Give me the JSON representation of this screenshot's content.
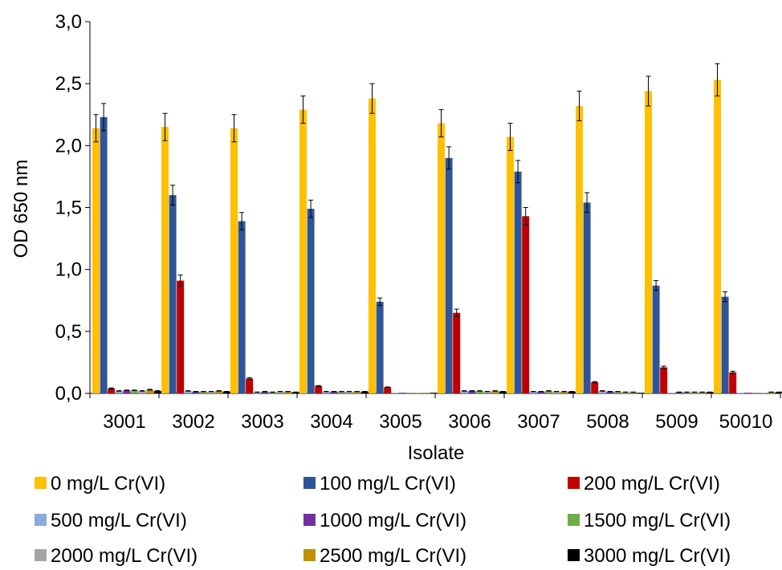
{
  "chart_data": {
    "type": "bar",
    "title": "",
    "xlabel": "Isolate",
    "ylabel": "OD 650 nm",
    "ylim": [
      0,
      3.0
    ],
    "yticks": [
      "0,0",
      "0,5",
      "1,0",
      "1,5",
      "2,0",
      "2,5",
      "3,0"
    ],
    "grid": false,
    "legend_position": "bottom",
    "categories": [
      "3001",
      "3002",
      "3003",
      "3004",
      "3005",
      "3006",
      "3007",
      "5008",
      "5009",
      "50010"
    ],
    "series": [
      {
        "name": "0 mg/L Cr(VI)",
        "color": "#FFC000",
        "values": [
          2.14,
          2.15,
          2.14,
          2.29,
          2.38,
          2.18,
          2.07,
          2.32,
          2.44,
          2.53
        ],
        "errors": [
          0.11,
          0.11,
          0.11,
          0.11,
          0.12,
          0.11,
          0.11,
          0.12,
          0.12,
          0.13
        ]
      },
      {
        "name": "100 mg/L Cr(VI)",
        "color": "#2F5597",
        "values": [
          2.23,
          1.6,
          1.39,
          1.49,
          0.74,
          1.9,
          1.79,
          1.54,
          0.87,
          0.78
        ],
        "errors": [
          0.11,
          0.08,
          0.07,
          0.07,
          0.03,
          0.09,
          0.09,
          0.08,
          0.04,
          0.04
        ]
      },
      {
        "name": "200 mg/L Cr(VI)",
        "color": "#C00000",
        "values": [
          0.04,
          0.91,
          0.12,
          0.06,
          0.05,
          0.65,
          1.43,
          0.09,
          0.21,
          0.17
        ],
        "errors": [
          0.004,
          0.045,
          0.006,
          0.003,
          0.002,
          0.03,
          0.07,
          0.005,
          0.01,
          0.009
        ]
      },
      {
        "name": "500 mg/L Cr(VI)",
        "color": "#8EA9DB",
        "values": [
          0.02,
          0.02,
          0.01,
          0.015,
          0.005,
          0.02,
          0.015,
          0.02,
          0.005,
          0.005
        ],
        "errors": [
          0.002,
          0.002,
          0.001,
          0.001,
          0.0,
          0.002,
          0.001,
          0.002,
          0.0,
          0.0
        ]
      },
      {
        "name": "1000 mg/L Cr(VI)",
        "color": "#7030A0",
        "values": [
          0.025,
          0.015,
          0.015,
          0.015,
          0.003,
          0.02,
          0.015,
          0.015,
          0.01,
          0.005
        ],
        "errors": [
          0.002,
          0.001,
          0.001,
          0.001,
          0.0,
          0.002,
          0.001,
          0.001,
          0.001,
          0.0
        ]
      },
      {
        "name": "1500 mg/L Cr(VI)",
        "color": "#70AD47",
        "values": [
          0.025,
          0.015,
          0.01,
          0.015,
          0.003,
          0.02,
          0.02,
          0.015,
          0.01,
          0.005
        ],
        "errors": [
          0.002,
          0.001,
          0.001,
          0.001,
          0.0,
          0.002,
          0.002,
          0.001,
          0.001,
          0.0
        ]
      },
      {
        "name": "2000 mg/L Cr(VI)",
        "color": "#A5A5A5",
        "values": [
          0.02,
          0.015,
          0.015,
          0.015,
          0.003,
          0.015,
          0.015,
          0.01,
          0.01,
          0.005
        ],
        "errors": [
          0.002,
          0.001,
          0.001,
          0.001,
          0.0,
          0.001,
          0.001,
          0.001,
          0.001,
          0.0
        ]
      },
      {
        "name": "2500 mg/L Cr(VI)",
        "color": "#BF9000",
        "values": [
          0.03,
          0.02,
          0.015,
          0.015,
          0.003,
          0.02,
          0.015,
          0.01,
          0.01,
          0.01
        ],
        "errors": [
          0.003,
          0.002,
          0.001,
          0.001,
          0.0,
          0.002,
          0.001,
          0.001,
          0.001,
          0.001
        ]
      },
      {
        "name": "3000 mg/L Cr(VI)",
        "color": "#000000",
        "values": [
          0.02,
          0.015,
          0.01,
          0.015,
          0.003,
          0.015,
          0.015,
          0.005,
          0.01,
          0.01
        ],
        "errors": [
          0.002,
          0.001,
          0.001,
          0.001,
          0.0,
          0.001,
          0.001,
          0.0,
          0.001,
          0.001
        ]
      }
    ]
  }
}
